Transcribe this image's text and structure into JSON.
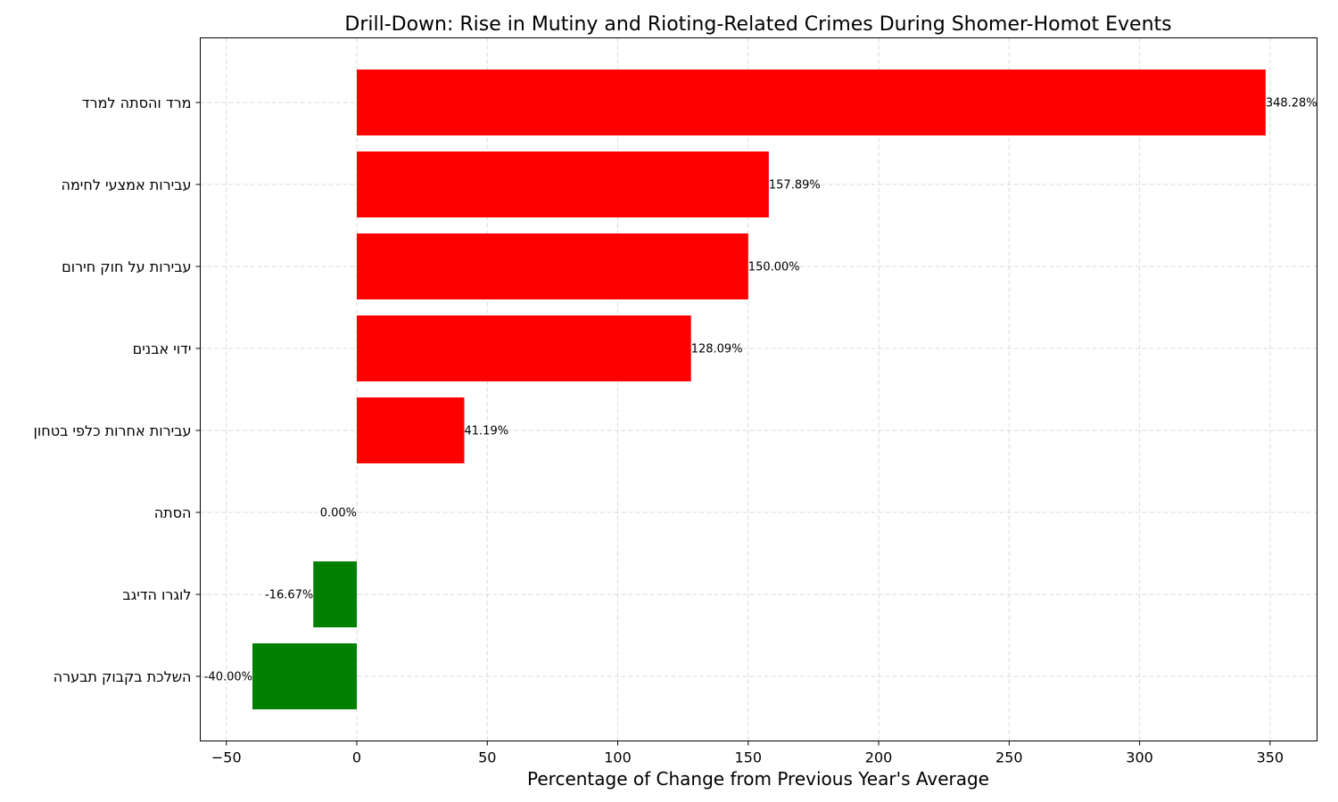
{
  "chart_data": {
    "type": "bar",
    "orientation": "horizontal",
    "title": "Drill-Down: Rise in Mutiny and Rioting-Related Crimes During Shomer-Homot Events",
    "xlabel": "Percentage of Change from Previous Year's Average",
    "ylabel": "",
    "xlim": [
      -60,
      368
    ],
    "xticks": [
      -50,
      0,
      50,
      100,
      150,
      200,
      250,
      300,
      350
    ],
    "xtick_labels": [
      "−50",
      "0",
      "50",
      "100",
      "150",
      "200",
      "250",
      "300",
      "350"
    ],
    "grid": true,
    "categories": [
      "מרד והסתה למרד",
      "עבירות אמצעי לחימה",
      "עבירות על חוק חירום",
      "ידוי אבנים",
      "עבירות אחרות כלפי בטחון",
      "הסתה",
      "לוגרו הדיגב",
      "השלכת בקבוק תבערה"
    ],
    "values": [
      348.28,
      157.89,
      150.0,
      128.09,
      41.19,
      0.0,
      -16.67,
      -40.0
    ],
    "value_labels": [
      "348.28%",
      "157.89%",
      "150.00%",
      "128.09%",
      "41.19%",
      "0.00%",
      "-16.67%",
      "-40.00%"
    ],
    "colors": {
      "positive": "#ff0000",
      "negative": "#008000"
    }
  }
}
